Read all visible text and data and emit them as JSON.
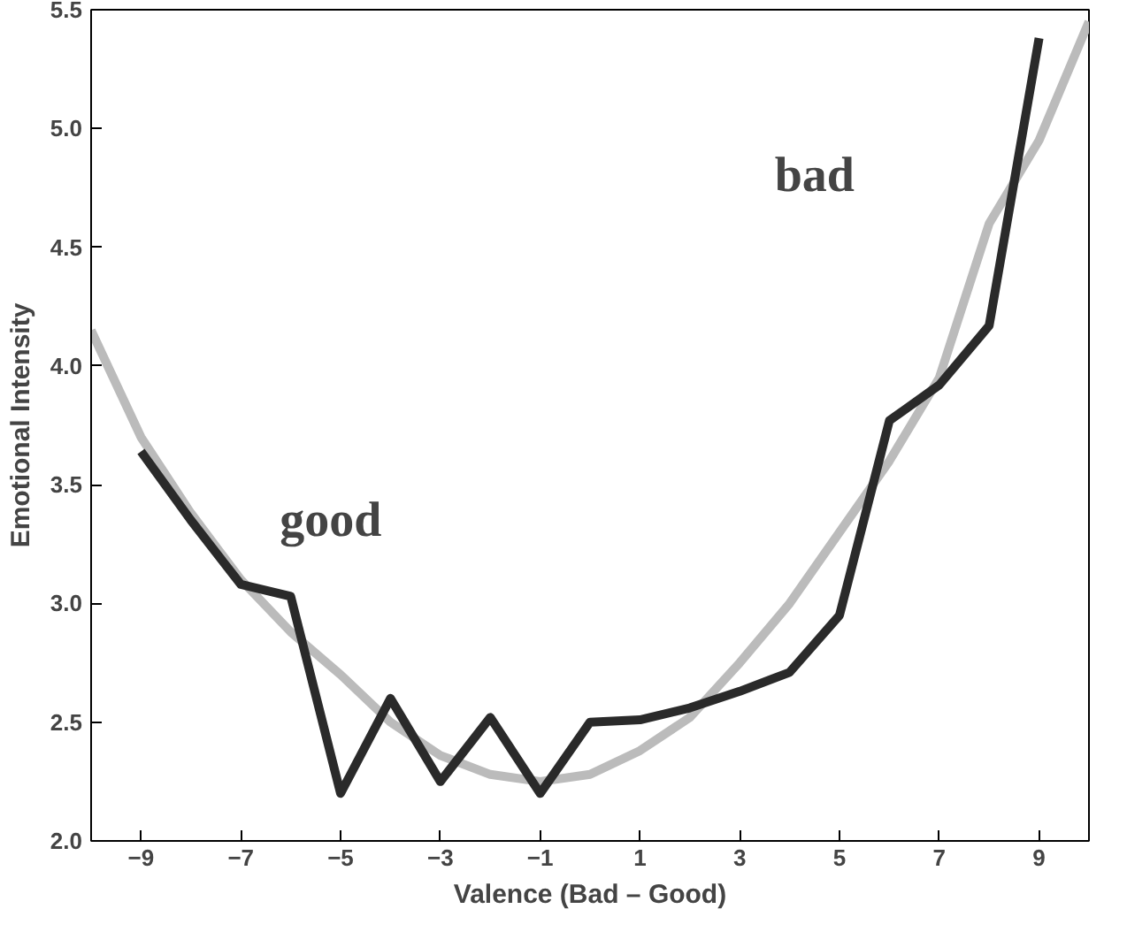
{
  "chart_data": {
    "type": "line",
    "xlabel": "Valence (Bad – Good)",
    "ylabel": "Emotional Intensity",
    "xlim": [
      -10,
      10
    ],
    "ylim": [
      2.0,
      5.5
    ],
    "xticks": [
      {
        "value": -9,
        "label": "−9"
      },
      {
        "value": -7,
        "label": "−7"
      },
      {
        "value": -5,
        "label": "−5"
      },
      {
        "value": -3,
        "label": "−3"
      },
      {
        "value": -1,
        "label": "−1"
      },
      1,
      3,
      5,
      7,
      9
    ],
    "yticks": [
      {
        "value": 2.0,
        "label": "2.0"
      },
      {
        "value": 2.5,
        "label": "2.5"
      },
      {
        "value": 3.0,
        "label": "3.0"
      },
      {
        "value": 3.5,
        "label": "3.5"
      },
      {
        "value": 4.0,
        "label": "4.0"
      },
      {
        "value": 4.5,
        "label": "4.5"
      },
      {
        "value": 5.0,
        "label": "5.0"
      },
      {
        "value": 5.5,
        "label": "5.5"
      }
    ],
    "grid": false,
    "marker": "none",
    "line_style": "solid",
    "series": [
      {
        "color": "#bbbbbb",
        "x": [
          -10,
          -9,
          -8,
          -7,
          -6,
          -5,
          -4,
          -3,
          -2,
          -1,
          0,
          1,
          2,
          3,
          4,
          5,
          6,
          7,
          8,
          9,
          10
        ],
        "values": [
          4.15,
          3.7,
          3.38,
          3.1,
          2.88,
          2.7,
          2.5,
          2.36,
          2.28,
          2.25,
          2.28,
          2.38,
          2.52,
          2.75,
          3.0,
          3.3,
          3.6,
          3.95,
          4.6,
          4.95,
          5.45
        ]
      },
      {
        "color": "#2a2a2a",
        "x": [
          -9,
          -8,
          -7,
          -6,
          -5,
          -4,
          -3,
          -2,
          -1,
          0,
          1,
          2,
          3,
          4,
          5,
          6,
          7,
          8,
          9
        ],
        "values": [
          3.64,
          3.35,
          3.08,
          3.03,
          2.2,
          2.6,
          2.25,
          2.52,
          2.2,
          2.5,
          2.51,
          2.56,
          2.63,
          2.71,
          2.95,
          3.77,
          3.92,
          4.17,
          5.38
        ]
      }
    ],
    "annotations": [
      "good",
      "bad"
    ]
  }
}
